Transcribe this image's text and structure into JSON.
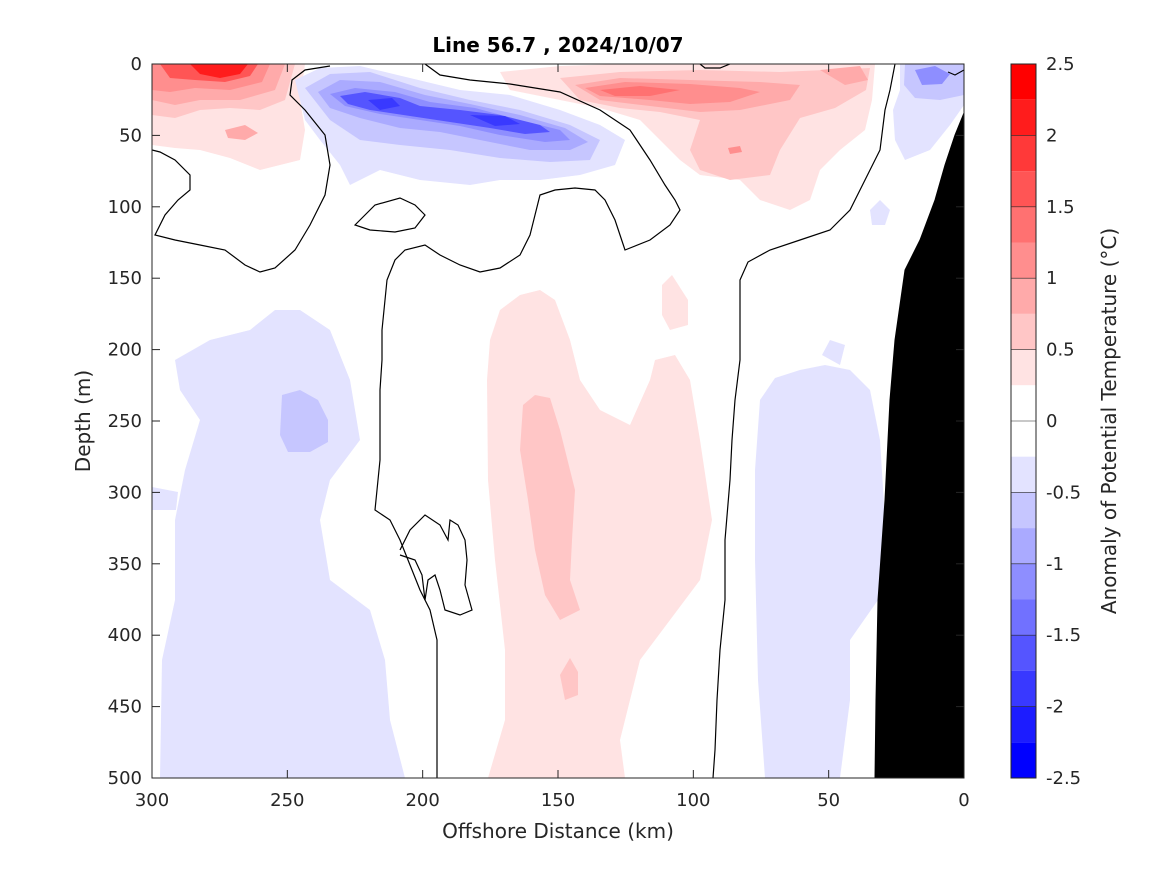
{
  "chart_data": {
    "type": "heatmap",
    "title": "Line 56.7 , 2024/10/07",
    "xlabel": "Offshore Distance (km)",
    "ylabel": "Depth (m)",
    "xlim": [
      300,
      0
    ],
    "ylim": [
      0,
      500
    ],
    "x_ticks": [
      300,
      250,
      200,
      150,
      100,
      50,
      0
    ],
    "y_ticks": [
      0,
      50,
      100,
      150,
      200,
      250,
      300,
      350,
      400,
      450,
      500
    ],
    "colorbar": {
      "label": "Anomaly of Potential Temperature (°C)",
      "range": [
        -2.5,
        2.5
      ],
      "ticks": [
        2.5,
        2,
        1.5,
        1,
        0.5,
        0,
        -0.5,
        -1,
        -1.5,
        -2,
        -2.5
      ],
      "levels": [
        {
          "min": 2.25,
          "max": 2.5,
          "color": "#ff0000"
        },
        {
          "min": 2.0,
          "max": 2.25,
          "color": "#ff1c1c"
        },
        {
          "min": 1.75,
          "max": 2.0,
          "color": "#ff3939"
        },
        {
          "min": 1.5,
          "max": 1.75,
          "color": "#ff5555"
        },
        {
          "min": 1.25,
          "max": 1.5,
          "color": "#ff7171"
        },
        {
          "min": 1.0,
          "max": 1.25,
          "color": "#ff8e8e"
        },
        {
          "min": 0.75,
          "max": 1.0,
          "color": "#ffaaaa"
        },
        {
          "min": 0.5,
          "max": 0.75,
          "color": "#ffc6c6"
        },
        {
          "min": 0.25,
          "max": 0.5,
          "color": "#ffe3e3"
        },
        {
          "min": 0.0,
          "max": 0.25,
          "color": "#ffffff"
        },
        {
          "min": -0.25,
          "max": 0.0,
          "color": "#ffffff"
        },
        {
          "min": -0.5,
          "max": -0.25,
          "color": "#e3e3ff"
        },
        {
          "min": -0.75,
          "max": -0.5,
          "color": "#c6c6ff"
        },
        {
          "min": -1.0,
          "max": -0.75,
          "color": "#aaaaff"
        },
        {
          "min": -1.25,
          "max": -1.0,
          "color": "#8e8eff"
        },
        {
          "min": -1.5,
          "max": -1.25,
          "color": "#7171ff"
        },
        {
          "min": -1.75,
          "max": -1.5,
          "color": "#5555ff"
        },
        {
          "min": -2.0,
          "max": -1.75,
          "color": "#3939ff"
        },
        {
          "min": -2.25,
          "max": -2.0,
          "color": "#1c1cff"
        },
        {
          "min": -2.5,
          "max": -2.25,
          "color": "#0000ff"
        }
      ]
    },
    "anomaly_features": [
      {
        "name": "surface warm core",
        "x_km": 272,
        "depth_m": 8,
        "value": 2.2
      },
      {
        "name": "near-surface warm band",
        "x_km": 125,
        "depth_m": 20,
        "value": 1.5
      },
      {
        "name": "subsurface cold core",
        "x_km": 215,
        "depth_m": 28,
        "value": -1.6
      },
      {
        "name": "subsurface cold core",
        "x_km": 160,
        "depth_m": 35,
        "value": -1.5
      },
      {
        "name": "nearshore cold core",
        "x_km": 20,
        "depth_m": 8,
        "value": -1.0
      },
      {
        "name": "deep cold patch",
        "x_km": 245,
        "depth_m": 250,
        "value": -0.6
      },
      {
        "name": "deep warm column",
        "x_km": 155,
        "depth_m": 320,
        "value": 0.6
      },
      {
        "name": "deep cold column",
        "x_km": 40,
        "depth_m": 350,
        "value": -0.3
      }
    ],
    "bathymetry_mask": {
      "color": "#000000"
    }
  }
}
